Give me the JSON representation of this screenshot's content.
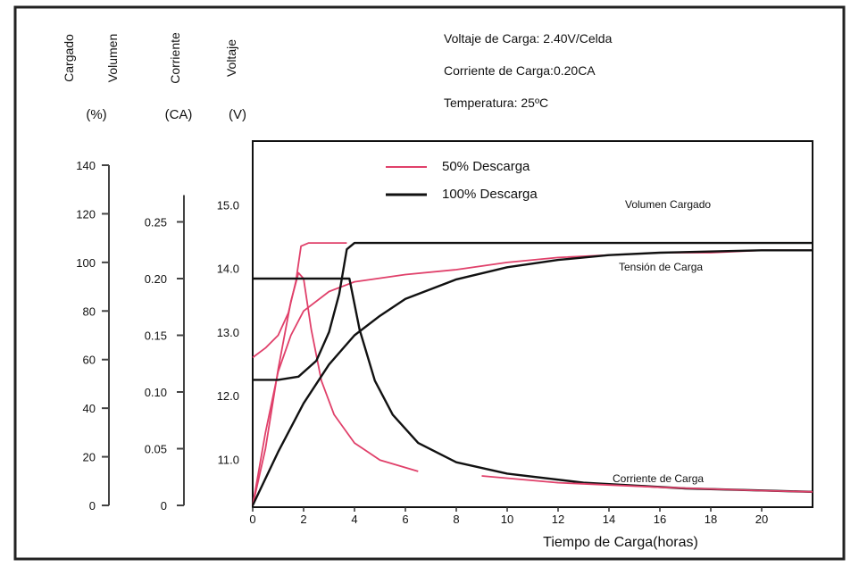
{
  "chart_data": {
    "type": "line",
    "xlabel": "Tiempo de Carga(horas)",
    "x_ticks": [
      "0",
      "2",
      "4",
      "6",
      "8",
      "10",
      "12",
      "14",
      "16",
      "18",
      "20"
    ],
    "xlim": [
      0,
      22
    ],
    "axes": [
      {
        "title": [
          "Cargado",
          "Volumen"
        ],
        "unit": "(%)",
        "ticks": [
          "0",
          "20",
          "40",
          "60",
          "80",
          "100",
          "120",
          "140"
        ],
        "range": [
          0,
          140
        ]
      },
      {
        "title": [
          "Corriente"
        ],
        "unit": "(CA)",
        "ticks": [
          "0",
          "0.05",
          "0.10",
          "0.15",
          "0.20",
          "0.25"
        ],
        "range": [
          0,
          0.3
        ]
      },
      {
        "title": [
          "Voltaje"
        ],
        "unit": "(V)",
        "ticks": [
          "11.0",
          "12.0",
          "13.0",
          "14.0",
          "15.0"
        ],
        "range": [
          10.25,
          16
        ]
      }
    ],
    "conditions": [
      "Voltaje de Carga: 2.40V/Celda",
      "Corriente de Carga:0.20CA",
      "Temperatura: 25ºC"
    ],
    "legend": {
      "placement": "top",
      "entries": [
        {
          "label": "50% Descarga",
          "color": "#e0406a"
        },
        {
          "label": "100% Descarga",
          "color": "#111111"
        }
      ]
    },
    "annotations": [
      "Volumen Cargado",
      "Tensión de Carga",
      "Corriente de Carga"
    ],
    "series": [
      {
        "group": "50% Descarga",
        "quantity": "Voltaje (V)",
        "color": "#e0406a",
        "points": [
          [
            0,
            12.6
          ],
          [
            0.5,
            12.75
          ],
          [
            1.0,
            12.95
          ],
          [
            1.4,
            13.3
          ],
          [
            1.7,
            13.8
          ],
          [
            1.9,
            14.35
          ],
          [
            2.2,
            14.4
          ],
          [
            3.3,
            14.4
          ],
          [
            3.7,
            14.4
          ]
        ]
      },
      {
        "group": "50% Descarga",
        "quantity": "Corriente (CA)",
        "color": "#e0406a",
        "points": [
          [
            0,
            0
          ],
          [
            0.5,
            0.05
          ],
          [
            1.0,
            0.12
          ],
          [
            1.5,
            0.18
          ],
          [
            1.8,
            0.205
          ],
          [
            2.0,
            0.2
          ],
          [
            2.3,
            0.155
          ],
          [
            2.7,
            0.11
          ],
          [
            3.2,
            0.08
          ],
          [
            4.0,
            0.055
          ],
          [
            5.0,
            0.04
          ],
          [
            6.5,
            0.03
          ]
        ]
      },
      {
        "group": "50% Descarga",
        "quantity": "Volumen Cargado (%)",
        "color": "#e0406a",
        "points": [
          [
            0,
            0
          ],
          [
            0.5,
            30
          ],
          [
            1.0,
            55
          ],
          [
            1.5,
            70
          ],
          [
            2.0,
            80
          ],
          [
            3.0,
            88
          ],
          [
            4.0,
            92
          ],
          [
            6.0,
            95
          ],
          [
            8.0,
            97
          ],
          [
            10.0,
            100
          ],
          [
            12.0,
            102
          ],
          [
            14.0,
            103
          ],
          [
            16.0,
            104
          ],
          [
            18.0,
            104
          ],
          [
            20.0,
            105
          ],
          [
            22.0,
            105
          ]
        ]
      },
      {
        "group": "100% Descarga",
        "quantity": "Voltaje (V)",
        "color": "#111111",
        "points": [
          [
            0,
            12.25
          ],
          [
            1.0,
            12.25
          ],
          [
            1.8,
            12.3
          ],
          [
            2.5,
            12.55
          ],
          [
            3.0,
            13.0
          ],
          [
            3.4,
            13.6
          ],
          [
            3.7,
            14.3
          ],
          [
            4.0,
            14.4
          ],
          [
            22.0,
            14.4
          ]
        ]
      },
      {
        "group": "100% Descarga",
        "quantity": "Corriente (CA)",
        "color": "#111111",
        "points": [
          [
            0,
            0.2
          ],
          [
            3.7,
            0.2
          ],
          [
            3.8,
            0.2
          ],
          [
            4.2,
            0.155
          ],
          [
            4.8,
            0.11
          ],
          [
            5.5,
            0.08
          ],
          [
            6.5,
            0.055
          ],
          [
            8.0,
            0.038
          ],
          [
            10.0,
            0.028
          ],
          [
            13.0,
            0.02
          ],
          [
            17.0,
            0.015
          ],
          [
            22.0,
            0.012
          ]
        ]
      },
      {
        "group": "100% Descarga",
        "quantity": "Volumen Cargado (%)",
        "color": "#111111",
        "points": [
          [
            0,
            0
          ],
          [
            1.0,
            22
          ],
          [
            2.0,
            42
          ],
          [
            3.0,
            58
          ],
          [
            4.0,
            70
          ],
          [
            5.0,
            78
          ],
          [
            6.0,
            85
          ],
          [
            8.0,
            93
          ],
          [
            10.0,
            98
          ],
          [
            12.0,
            101
          ],
          [
            14.0,
            103
          ],
          [
            16.0,
            104
          ],
          [
            20.0,
            105
          ],
          [
            22.0,
            105
          ]
        ]
      },
      {
        "group": "50% Descarga",
        "quantity": "Corriente (CA) tail",
        "color": "#e0406a",
        "points": [
          [
            9.0,
            0.026
          ],
          [
            12.0,
            0.02
          ],
          [
            16.0,
            0.016
          ],
          [
            20.0,
            0.013
          ],
          [
            22.0,
            0.012
          ]
        ]
      }
    ]
  }
}
